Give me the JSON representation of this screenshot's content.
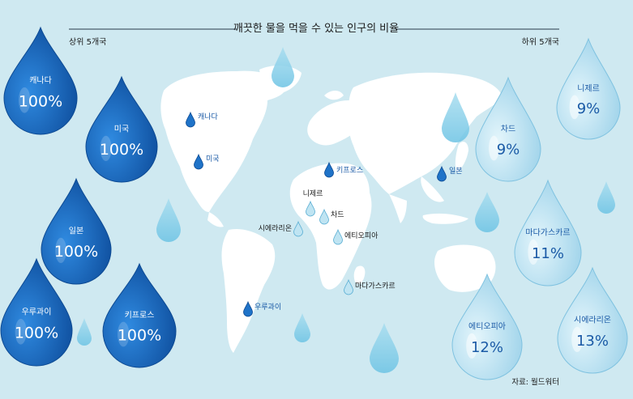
{
  "chart_data": {
    "type": "bar",
    "title": "깨끗한 물을 먹을 수 있는 인구의 비율",
    "source": "자료: 월드워터",
    "groups": [
      {
        "label": "상위 5개국",
        "items": [
          {
            "country": "캐나다",
            "value": 100,
            "value_label": "100%"
          },
          {
            "country": "미국",
            "value": 100,
            "value_label": "100%"
          },
          {
            "country": "일본",
            "value": 100,
            "value_label": "100%"
          },
          {
            "country": "우루과이",
            "value": 100,
            "value_label": "100%"
          },
          {
            "country": "키프로스",
            "value": 100,
            "value_label": "100%"
          }
        ]
      },
      {
        "label": "하위 5개국",
        "items": [
          {
            "country": "차드",
            "value": 9,
            "value_label": "9%"
          },
          {
            "country": "니제르",
            "value": 9,
            "value_label": "9%"
          },
          {
            "country": "마다가스카르",
            "value": 11,
            "value_label": "11%"
          },
          {
            "country": "에티오피아",
            "value": 12,
            "value_label": "12%"
          },
          {
            "country": "시에라리온",
            "value": 13,
            "value_label": "13%"
          }
        ]
      }
    ],
    "colors": {
      "background": "#cfe9f1",
      "top_drop": "#1f73c8",
      "bottom_drop": "#bfe4f2",
      "bottom_drop_text": "#1a5aa6",
      "map": "#ffffff"
    }
  }
}
